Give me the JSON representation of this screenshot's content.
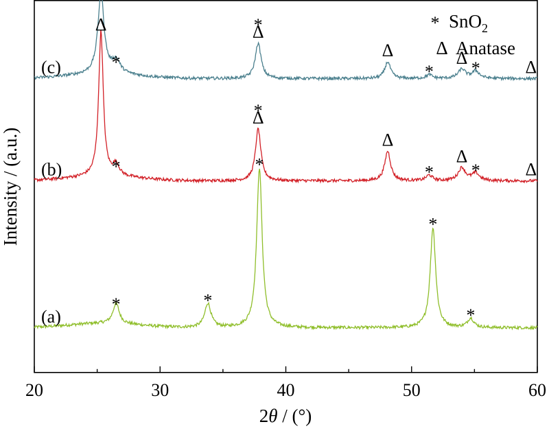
{
  "chart_data": {
    "type": "line",
    "title": "",
    "xlabel_parts": [
      "2",
      "θ",
      " / (°)"
    ],
    "ylabel": "Intensity / (a.u.)",
    "xlim": [
      20,
      60
    ],
    "xticks": [
      20,
      30,
      40,
      50,
      60
    ],
    "y_ticks_shown": false,
    "grid": false,
    "legend": {
      "placement": "top-right",
      "entries": [
        {
          "symbol": "*",
          "base": "SnO",
          "sub": "2"
        },
        {
          "symbol": "Δ",
          "base": "Anatase",
          "sub": ""
        }
      ]
    },
    "series": [
      {
        "label": "(a)",
        "color": "#8fbe2a",
        "baseline": 0.12,
        "peaks": [
          {
            "x": 26.5,
            "h": 0.055,
            "w": 0.3,
            "marker": "*"
          },
          {
            "x": 33.8,
            "h": 0.065,
            "w": 0.3,
            "marker": "*"
          },
          {
            "x": 37.9,
            "h": 0.43,
            "w": 0.26,
            "marker": "*"
          },
          {
            "x": 51.7,
            "h": 0.27,
            "w": 0.26,
            "marker": "*"
          },
          {
            "x": 54.7,
            "h": 0.025,
            "w": 0.3,
            "marker": "*"
          }
        ]
      },
      {
        "label": "(b)",
        "color": "#d21f26",
        "baseline": 0.515,
        "peaks": [
          {
            "x": 25.3,
            "h": 0.39,
            "w": 0.22,
            "marker": "Δ"
          },
          {
            "x": 26.5,
            "h": 0.03,
            "w": 0.3,
            "marker": "*"
          },
          {
            "x": 37.8,
            "h": 0.14,
            "w": 0.26,
            "marker": "*Δ"
          },
          {
            "x": 48.1,
            "h": 0.08,
            "w": 0.28,
            "marker": "Δ"
          },
          {
            "x": 51.4,
            "h": 0.015,
            "w": 0.3,
            "marker": "*"
          },
          {
            "x": 54.0,
            "h": 0.035,
            "w": 0.35,
            "marker": "Δ"
          },
          {
            "x": 55.1,
            "h": 0.02,
            "w": 0.35,
            "marker": "*"
          },
          {
            "x": 59.5,
            "h": 0.0,
            "w": 0.3,
            "marker": "Δ"
          }
        ]
      },
      {
        "label": "(c)",
        "color": "#4a7f8d",
        "baseline": 0.79,
        "peaks": [
          {
            "x": 25.3,
            "h": 0.215,
            "w": 0.3,
            "marker": "Δ"
          },
          {
            "x": 26.5,
            "h": 0.035,
            "w": 0.4,
            "marker": "*"
          },
          {
            "x": 37.8,
            "h": 0.095,
            "w": 0.28,
            "marker": "*Δ"
          },
          {
            "x": 48.1,
            "h": 0.045,
            "w": 0.28,
            "marker": "Δ"
          },
          {
            "x": 51.4,
            "h": 0.01,
            "w": 0.3,
            "marker": "*"
          },
          {
            "x": 54.0,
            "h": 0.025,
            "w": 0.35,
            "marker": "Δ"
          },
          {
            "x": 55.1,
            "h": 0.02,
            "w": 0.35,
            "marker": "*"
          },
          {
            "x": 59.5,
            "h": 0.0,
            "w": 0.3,
            "marker": "Δ"
          }
        ]
      }
    ]
  }
}
